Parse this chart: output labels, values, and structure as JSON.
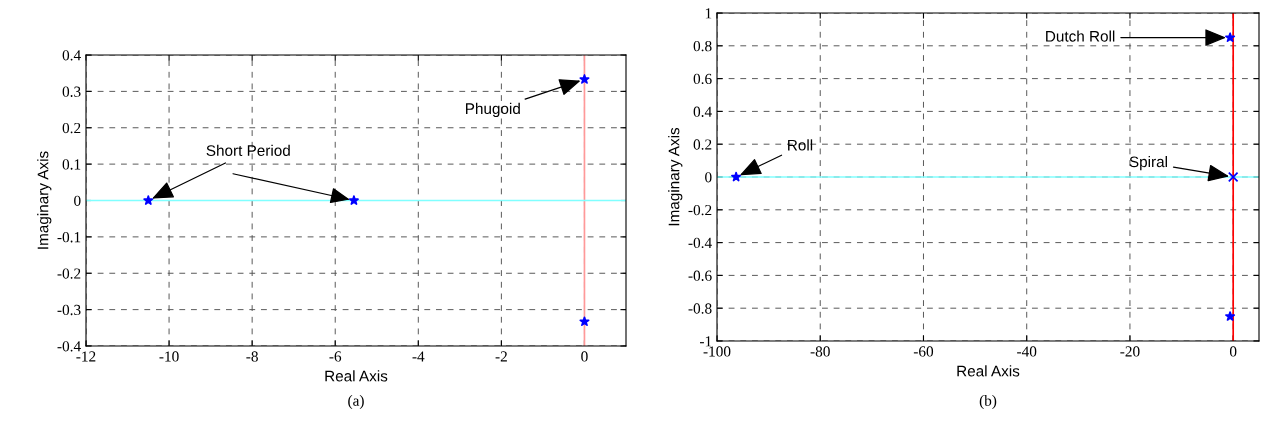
{
  "chart_data": [
    {
      "type": "scatter",
      "xlabel": "Real Axis",
      "ylabel": "Imaginary Axis",
      "series": [
        {
          "color": "#0000ff",
          "x": [
            -10.5,
            -5.55,
            0,
            0
          ],
          "values": [
            0,
            0,
            0.333,
            -0.333
          ]
        }
      ],
      "marker": "star",
      "xlim": [
        -12,
        1
      ],
      "ylim": [
        -0.4,
        0.4
      ],
      "xticks": [
        -12,
        -10,
        -8,
        -6,
        -4,
        -2,
        0
      ],
      "yticks": [
        -0.4,
        -0.3,
        -0.2,
        -0.1,
        0,
        0.1,
        0.2,
        0.3,
        0.4
      ],
      "grid": true,
      "line_style": "dashed",
      "ref_lines": [
        {
          "axis": "x",
          "value": 0,
          "color": "#ff9999"
        },
        {
          "axis": "y",
          "value": 0,
          "color": "#80ffff"
        }
      ],
      "annotations": [
        {
          "text": "Short Period",
          "x": -10.5,
          "y": 0
        },
        {
          "text": "Phugoid",
          "x": 0,
          "y": 0.333
        },
        "(a)"
      ]
    },
    {
      "type": "scatter",
      "xlabel": "Real Axis",
      "ylabel": "Imaginary Axis",
      "series": [
        {
          "color": "#0000ff",
          "x": [
            -96.3,
            -0.6,
            -0.6
          ],
          "values": [
            0,
            0.85,
            -0.85
          ]
        },
        {
          "color": "#0000ff",
          "x": [
            0
          ],
          "values": [
            0
          ],
          "marker": "cross"
        }
      ],
      "marker": "star",
      "xlim": [
        -100,
        5
      ],
      "ylim": [
        -1,
        1
      ],
      "xticks": [
        -100,
        -80,
        -60,
        -40,
        -20,
        0
      ],
      "yticks": [
        -1,
        -0.8,
        -0.6,
        -0.4,
        -0.2,
        0,
        0.2,
        0.4,
        0.6,
        0.8,
        1
      ],
      "grid": true,
      "line_style": "dashed",
      "ref_lines": [
        {
          "axis": "x",
          "value": 0,
          "color": "#ff0000"
        },
        {
          "axis": "y",
          "value": 0,
          "color": "#80ffff"
        }
      ],
      "annotations": [
        {
          "text": "Dutch Roll",
          "x": -0.6,
          "y": 0.85
        },
        {
          "text": "Roll",
          "x": -96.3,
          "y": 0
        },
        {
          "text": "Spiral",
          "x": 0,
          "y": 0
        },
        "(b)"
      ]
    }
  ]
}
